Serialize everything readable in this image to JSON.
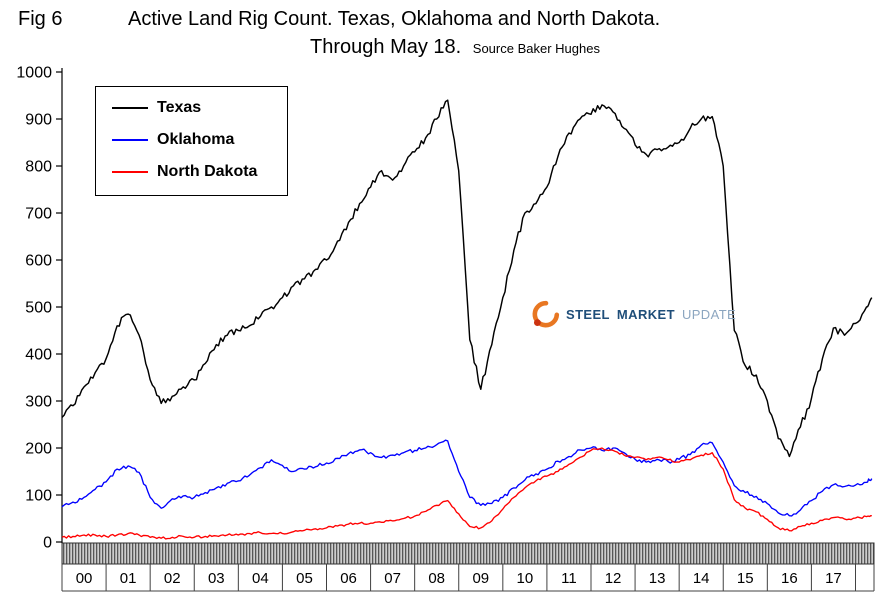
{
  "figure": {
    "fig_label": "Fig 6",
    "title_line1": "Active Land Rig Count. Texas, Oklahoma and North Dakota.",
    "title_line2": "Through May 18.",
    "source": "Source Baker Hughes"
  },
  "watermark": {
    "steel": "STEEL",
    "market": "MARKET",
    "update": "UPDATE",
    "steel_color": "#1f4e79",
    "update_color": "#8ca6c0",
    "swoosh_color": "#e87722",
    "dot_color": "#cc3311"
  },
  "chart_data": {
    "type": "line",
    "title": "Active Land Rig Count. Texas, Oklahoma and North Dakota. Through May 18.",
    "subtitle": "Source Baker Hughes",
    "xlabel": "",
    "ylabel": "",
    "grid": false,
    "legend_position": "top-left",
    "ylim": [
      0,
      1000
    ],
    "y_ticks": [
      0,
      100,
      200,
      300,
      400,
      500,
      600,
      700,
      800,
      900,
      1000
    ],
    "x_range": [
      2000,
      2018.42
    ],
    "x_tick_labels": [
      "00",
      "01",
      "02",
      "03",
      "04",
      "05",
      "06",
      "07",
      "08",
      "09",
      "10",
      "11",
      "12",
      "13",
      "14",
      "15",
      "16",
      "17"
    ],
    "x": [
      2000,
      2000.25,
      2000.5,
      2000.75,
      2001,
      2001.25,
      2001.5,
      2001.75,
      2002,
      2002.25,
      2002.5,
      2002.75,
      2003,
      2003.25,
      2003.5,
      2003.75,
      2004,
      2004.25,
      2004.5,
      2004.75,
      2005,
      2005.25,
      2005.5,
      2005.75,
      2006,
      2006.25,
      2006.5,
      2006.75,
      2007,
      2007.25,
      2007.5,
      2007.75,
      2008,
      2008.25,
      2008.5,
      2008.75,
      2009,
      2009.25,
      2009.5,
      2009.75,
      2010,
      2010.25,
      2010.5,
      2010.75,
      2011,
      2011.25,
      2011.5,
      2011.75,
      2012,
      2012.25,
      2012.5,
      2012.75,
      2013,
      2013.25,
      2013.5,
      2013.75,
      2014,
      2014.25,
      2014.5,
      2014.75,
      2015,
      2015.25,
      2015.5,
      2015.75,
      2016,
      2016.25,
      2016.5,
      2016.75,
      2017,
      2017.25,
      2017.5,
      2017.75,
      2018,
      2018.25,
      2018.37
    ],
    "series": [
      {
        "name": "Texas",
        "color": "#000000",
        "values": [
          265,
          290,
          330,
          360,
          390,
          460,
          485,
          440,
          345,
          295,
          310,
          330,
          345,
          380,
          420,
          440,
          450,
          460,
          480,
          500,
          520,
          545,
          560,
          580,
          600,
          640,
          680,
          720,
          755,
          790,
          770,
          800,
          830,
          860,
          900,
          940,
          790,
          430,
          325,
          420,
          520,
          620,
          700,
          720,
          755,
          820,
          870,
          900,
          910,
          930,
          915,
          880,
          845,
          825,
          835,
          840,
          850,
          880,
          900,
          905,
          800,
          450,
          375,
          355,
          300,
          220,
          182,
          245,
          305,
          390,
          455,
          440,
          465,
          500,
          520
        ]
      },
      {
        "name": "Oklahoma",
        "color": "#0000ff",
        "values": [
          75,
          85,
          95,
          112,
          128,
          155,
          162,
          148,
          95,
          72,
          92,
          98,
          95,
          105,
          115,
          125,
          130,
          142,
          158,
          175,
          163,
          150,
          155,
          160,
          168,
          178,
          188,
          196,
          190,
          180,
          185,
          190,
          195,
          200,
          207,
          215,
          150,
          95,
          78,
          82,
          95,
          115,
          132,
          145,
          155,
          172,
          182,
          196,
          200,
          195,
          200,
          190,
          176,
          170,
          176,
          171,
          176,
          186,
          206,
          211,
          170,
          120,
          105,
          97,
          82,
          62,
          56,
          68,
          88,
          108,
          122,
          118,
          121,
          127,
          135
        ]
      },
      {
        "name": "North Dakota",
        "color": "#ff0000",
        "values": [
          10,
          12,
          15,
          15,
          12,
          15,
          18,
          15,
          10,
          8,
          10,
          12,
          10,
          12,
          13,
          15,
          15,
          18,
          20,
          18,
          18,
          22,
          25,
          28,
          30,
          34,
          38,
          40,
          40,
          42,
          45,
          50,
          55,
          65,
          78,
          88,
          60,
          33,
          30,
          45,
          70,
          95,
          115,
          130,
          140,
          150,
          165,
          180,
          195,
          200,
          195,
          185,
          180,
          175,
          180,
          175,
          170,
          175,
          185,
          190,
          155,
          90,
          72,
          64,
          48,
          30,
          24,
          33,
          40,
          46,
          52,
          49,
          51,
          54,
          56
        ]
      }
    ]
  }
}
